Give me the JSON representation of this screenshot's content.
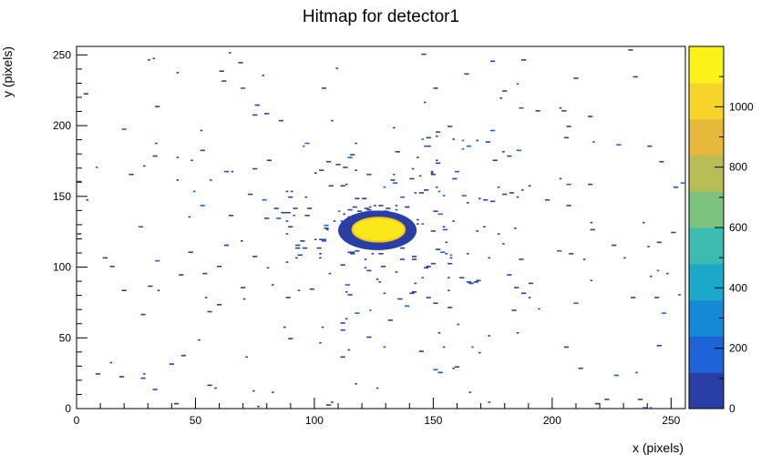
{
  "chart_data": {
    "type": "heatmap",
    "title": "Hitmap for detector1",
    "xlabel": "x (pixels)",
    "ylabel": "y (pixels)",
    "xlim": [
      0,
      256
    ],
    "ylim": [
      0,
      256
    ],
    "x_ticks": [
      0,
      50,
      100,
      150,
      200,
      250
    ],
    "y_ticks": [
      0,
      50,
      100,
      150,
      200,
      250
    ],
    "z_range": [
      0,
      1200
    ],
    "z_ticks": [
      0,
      200,
      400,
      600,
      800,
      1000
    ],
    "colormap": [
      "#2a3fa6",
      "#1f63d8",
      "#1689d6",
      "#1ba8c9",
      "#3cbcb0",
      "#7cc47e",
      "#b8bd56",
      "#e6b93c",
      "#f7d42a",
      "#fbf21a"
    ],
    "hot_spot": {
      "x_range": [
        116,
        138
      ],
      "y_range": [
        118,
        135
      ],
      "value": 1150
    },
    "halo": {
      "x_range": [
        110,
        143
      ],
      "y_range": [
        112,
        140
      ],
      "value": 40
    },
    "background": {
      "value": 8,
      "distribution": "radial falloff from center (126, 127)"
    }
  }
}
